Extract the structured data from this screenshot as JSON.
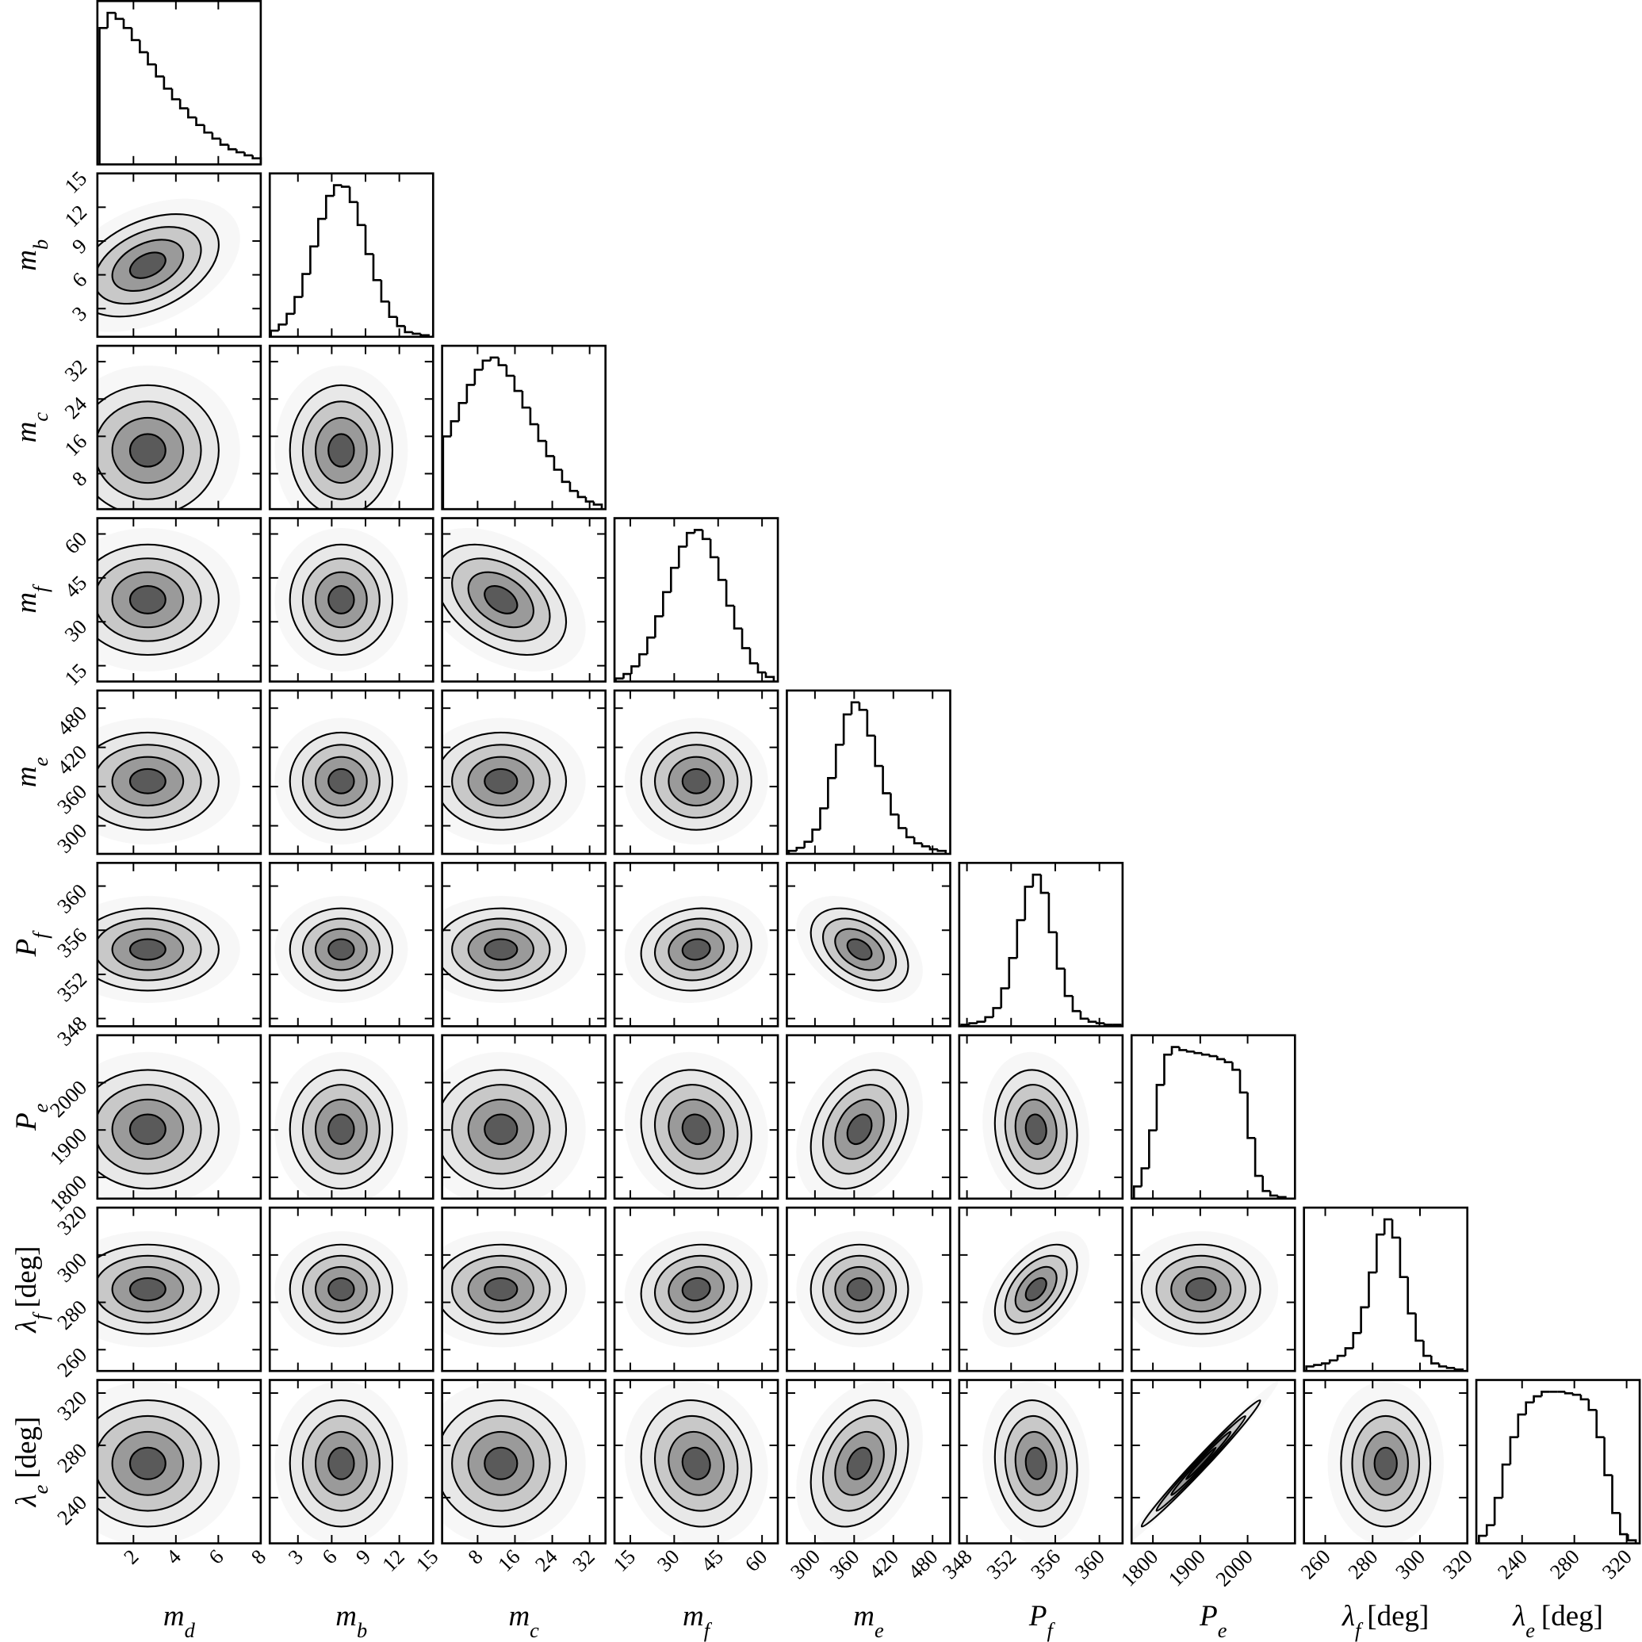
{
  "chart_data": {
    "type": "corner",
    "parameters": [
      {
        "label": {
          "symbol": "m",
          "sub": "d"
        },
        "xlim": [
          0.3,
          8
        ],
        "xticks": [
          2,
          4,
          6,
          8
        ],
        "bins": [
          0.4,
          0.78,
          1.16,
          1.54,
          1.92,
          2.3,
          2.68,
          3.06,
          3.44,
          3.82,
          4.2,
          4.58,
          4.96,
          5.34,
          5.72,
          6.1,
          6.48,
          6.86,
          7.24,
          7.62,
          8.0
        ],
        "counts": [
          90,
          100,
          96,
          90,
          82,
          74,
          66,
          58,
          50,
          43,
          37,
          31,
          26,
          21,
          17,
          13,
          10,
          8,
          6,
          4
        ]
      },
      {
        "label": {
          "symbol": "m",
          "sub": "b"
        },
        "xlim": [
          0.5,
          15
        ],
        "xticks": [
          3,
          6,
          9,
          12,
          15
        ],
        "bins": [
          0.6,
          1.3,
          2.0,
          2.7,
          3.4,
          4.1,
          4.8,
          5.5,
          6.2,
          6.9,
          7.6,
          8.3,
          9.0,
          9.7,
          10.4,
          11.1,
          11.8,
          12.5,
          13.2,
          13.9,
          14.6
        ],
        "counts": [
          4,
          8,
          15,
          26,
          41,
          59,
          77,
          92,
          99,
          98,
          88,
          73,
          54,
          37,
          23,
          13,
          7,
          3,
          2,
          1
        ]
      },
      {
        "label": {
          "symbol": "m",
          "sub": "c"
        },
        "xlim": [
          0.4,
          35.4
        ],
        "xticks": [
          8,
          16,
          24,
          32
        ],
        "bins": [
          0.6,
          2.3,
          4.0,
          5.7,
          7.4,
          9.1,
          10.8,
          12.5,
          14.2,
          15.9,
          17.6,
          19.3,
          21.0,
          22.7,
          24.4,
          26.1,
          27.8,
          29.5,
          31.2,
          32.9,
          34.6
        ],
        "counts": [
          48,
          58,
          70,
          82,
          92,
          98,
          100,
          95,
          88,
          78,
          67,
          56,
          45,
          35,
          26,
          18,
          12,
          8,
          5,
          3
        ]
      },
      {
        "label": {
          "symbol": "m",
          "sub": "f"
        },
        "xlim": [
          9.6,
          65.4
        ],
        "xticks": [
          15,
          30,
          45,
          60
        ],
        "bins": [
          10,
          12.7,
          15.4,
          18.1,
          20.8,
          23.5,
          26.2,
          28.9,
          31.6,
          34.3,
          37,
          39.7,
          42.4,
          45.1,
          47.8,
          50.5,
          53.2,
          55.9,
          58.6,
          61.3,
          64
        ],
        "counts": [
          2,
          5,
          10,
          18,
          29,
          43,
          59,
          75,
          89,
          98,
          100,
          94,
          82,
          67,
          50,
          35,
          22,
          12,
          6,
          3
        ]
      },
      {
        "label": {
          "symbol": "m",
          "sub": "e"
        },
        "xlim": [
          257,
          507
        ],
        "xticks": [
          300,
          360,
          420,
          480
        ],
        "bins": [
          260,
          272,
          284,
          296,
          308,
          320,
          332,
          344,
          356,
          368,
          380,
          392,
          404,
          416,
          428,
          440,
          452,
          464,
          476,
          488,
          500
        ],
        "counts": [
          2,
          4,
          8,
          16,
          30,
          50,
          72,
          92,
          100,
          95,
          78,
          58,
          40,
          26,
          17,
          11,
          7,
          5,
          3,
          2
        ]
      },
      {
        "label": {
          "symbol": "P",
          "sub": "f"
        },
        "xlim": [
          347.3,
          362.1
        ],
        "xticks": [
          348,
          352,
          356,
          360
        ],
        "bins": [
          347.5,
          348.22,
          348.94,
          349.66,
          350.38,
          351.1,
          351.82,
          352.54,
          353.26,
          353.98,
          354.7,
          355.42,
          356.14,
          356.86,
          357.58,
          358.3,
          359.02,
          359.74,
          360.46,
          361.18,
          361.9
        ],
        "counts": [
          1,
          2,
          3,
          6,
          12,
          25,
          45,
          70,
          92,
          100,
          88,
          62,
          38,
          20,
          10,
          5,
          3,
          2,
          1,
          1
        ]
      },
      {
        "label": {
          "symbol": "P",
          "sub": "e"
        },
        "xlim": [
          1755,
          2100
        ],
        "xticks": [
          1800,
          1900,
          2000
        ],
        "bins": [
          1760,
          1776,
          1792,
          1808,
          1824,
          1840,
          1856,
          1872,
          1888,
          1904,
          1920,
          1936,
          1952,
          1968,
          1984,
          2000,
          2016,
          2032,
          2048,
          2064,
          2080
        ],
        "counts": [
          8,
          20,
          45,
          75,
          95,
          100,
          98,
          97,
          96,
          95,
          94,
          92,
          90,
          85,
          70,
          40,
          15,
          5,
          2,
          1
        ]
      },
      {
        "label": {
          "symbol": "λ",
          "sub": "f",
          "unit": "[deg]"
        },
        "xlim": [
          251,
          320
        ],
        "xticks": [
          260,
          280,
          300,
          320
        ],
        "bins": [
          252,
          255.3,
          258.6,
          261.9,
          265.2,
          268.5,
          271.8,
          275.1,
          278.4,
          281.7,
          285,
          288.3,
          291.6,
          294.9,
          298.2,
          301.5,
          304.8,
          308.1,
          311.4,
          314.7,
          318
        ],
        "counts": [
          3,
          4,
          5,
          7,
          10,
          15,
          25,
          42,
          65,
          90,
          100,
          88,
          62,
          38,
          20,
          10,
          5,
          3,
          2,
          1
        ]
      },
      {
        "label": {
          "symbol": "λ",
          "sub": "e",
          "unit": "[deg]"
        },
        "xlim": [
          205,
          330
        ],
        "xticks": [
          240,
          280,
          320
        ],
        "bins": [
          207,
          213,
          219,
          225,
          231,
          237,
          243,
          249,
          255,
          261,
          267,
          273,
          279,
          285,
          291,
          297,
          303,
          309,
          315,
          321,
          327
        ],
        "counts": [
          5,
          12,
          30,
          52,
          70,
          85,
          93,
          97,
          100,
          100,
          100,
          99,
          98,
          95,
          88,
          70,
          45,
          20,
          6,
          2
        ]
      }
    ],
    "correlations": [
      0.4,
      0,
      0,
      0,
      0,
      -0.4,
      0,
      0,
      0,
      0,
      0,
      0,
      0,
      0.1,
      -0.4,
      0,
      0,
      0,
      -0.1,
      0.3,
      -0.1,
      0,
      0,
      0,
      0.1,
      0,
      0.5,
      0,
      0,
      0,
      0,
      -0.1,
      0.3,
      -0.1,
      0.99,
      0
    ]
  }
}
